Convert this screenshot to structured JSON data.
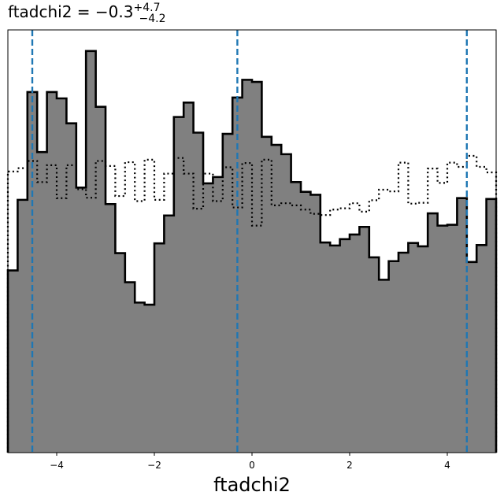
{
  "chart_data": {
    "type": "histogram",
    "title": {
      "base": "ftadchi2 = −0.3",
      "sup": "+4.7",
      "sub": "−4.2"
    },
    "xlabel": "ftadchi2",
    "xlim": [
      -5,
      5
    ],
    "ylim": [
      0,
      1
    ],
    "x_ticks": [
      -4,
      -2,
      0,
      2,
      4
    ],
    "x_tick_labels": [
      "−4",
      "−2",
      "0",
      "2",
      "4"
    ],
    "y_ticks_shown": false,
    "bin_edges_range": [
      -5,
      5
    ],
    "bin_count": 50,
    "series": [
      {
        "style": "filled-gray",
        "fill": "#808080",
        "edge": "#000000",
        "values": [
          0.431,
          0.598,
          0.853,
          0.711,
          0.853,
          0.838,
          0.779,
          0.627,
          0.95,
          0.818,
          0.588,
          0.472,
          0.403,
          0.355,
          0.35,
          0.495,
          0.561,
          0.794,
          0.828,
          0.757,
          0.637,
          0.652,
          0.754,
          0.84,
          0.882,
          0.877,
          0.747,
          0.728,
          0.706,
          0.64,
          0.617,
          0.61,
          0.497,
          0.49,
          0.505,
          0.516,
          0.534,
          0.462,
          0.409,
          0.453,
          0.473,
          0.496,
          0.488,
          0.566,
          0.537,
          0.539,
          0.602,
          0.451,
          0.491,
          0.6
        ]
      },
      {
        "style": "dotted-step",
        "edge": "#000000",
        "values": [
          0.665,
          0.673,
          0.69,
          0.64,
          0.68,
          0.602,
          0.68,
          0.623,
          0.603,
          0.69,
          0.678,
          0.607,
          0.687,
          0.595,
          0.693,
          0.598,
          0.66,
          0.697,
          0.66,
          0.577,
          0.66,
          0.595,
          0.675,
          0.58,
          0.685,
          0.537,
          0.693,
          0.585,
          0.59,
          0.585,
          0.575,
          0.565,
          0.562,
          0.575,
          0.578,
          0.59,
          0.57,
          0.597,
          0.622,
          0.618,
          0.686,
          0.589,
          0.591,
          0.672,
          0.638,
          0.686,
          0.676,
          0.702,
          0.676,
          0.663
        ]
      }
    ],
    "vlines": {
      "color": "#1f77b4",
      "style": "dashed",
      "x": [
        -4.5,
        -0.3,
        4.4
      ]
    }
  }
}
